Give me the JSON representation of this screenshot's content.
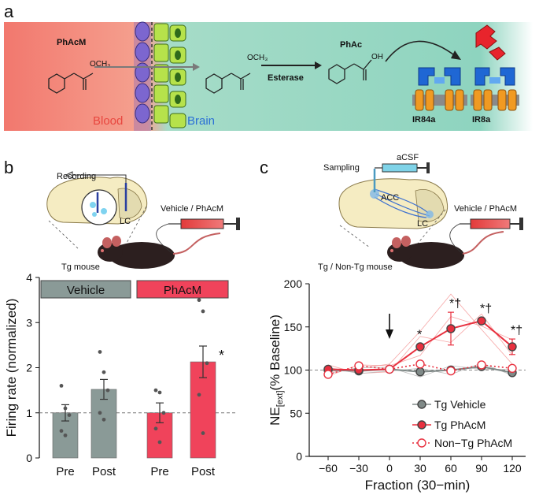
{
  "panel_a": {
    "label": "a",
    "molecule1": "PhAcM",
    "methyl1": "OCH₃",
    "methyl2": "OCH₃",
    "enzyme": "Esterase",
    "molecule2": "PhAc",
    "oh": "OH",
    "blood": "Blood",
    "brain": "Brain",
    "receptor1": "IR84a",
    "receptor2": "IR8a",
    "colors": {
      "blood": "#e8473f",
      "brain": "#2a6fd6",
      "receptor_blue": "#1f67d4",
      "receptor_orange": "#f09a22",
      "ligand_red": "#e8242c"
    }
  },
  "panel_b": {
    "label": "b",
    "recording": "Recording",
    "lc": "LC",
    "vehicle_phacm": "Vehicle / PhAcM",
    "mouse": "Tg mouse",
    "chart_data": {
      "type": "bar",
      "ylabel": "Firing rate (normalized)",
      "ylim": [
        0,
        4
      ],
      "yticks": [
        "0",
        "1",
        "2",
        "3",
        "4"
      ],
      "groups": [
        {
          "name": "Vehicle",
          "color": "#8a9a97",
          "bars": [
            {
              "label": "Pre",
              "value": 1.0,
              "err": 0.18,
              "points": [
                1.6,
                1.1,
                0.95,
                0.6,
                0.5
              ]
            },
            {
              "label": "Post",
              "value": 1.52,
              "err": 0.22,
              "points": [
                2.35,
                1.9,
                1.5,
                1.0,
                0.85
              ]
            }
          ]
        },
        {
          "name": "PhAcM",
          "color": "#f0435b",
          "bars": [
            {
              "label": "Pre",
              "value": 1.0,
              "err": 0.22,
              "points": [
                1.5,
                1.45,
                1.0,
                0.65,
                0.35
              ]
            },
            {
              "label": "Post",
              "value": 2.13,
              "err": 0.35,
              "points": [
                3.5,
                3.25,
                2.1,
                1.4,
                0.55
              ]
            }
          ]
        }
      ],
      "significance": "*",
      "baseline": 1
    }
  },
  "panel_c": {
    "label": "c",
    "sampling": "Sampling",
    "acsf": "aCSF",
    "acc": "ACC",
    "lc": "LC",
    "vehicle_phacm": "Vehicle / PhAcM",
    "mouse": "Tg / Non-Tg mouse",
    "chart_data": {
      "type": "line",
      "ylabel_main": "NE",
      "ylabel_sub": "[ext]",
      "ylabel_rest": "(% Baseline)",
      "xlabel": "Fraction (30−min)",
      "x": [
        -60,
        -30,
        0,
        30,
        60,
        90,
        120
      ],
      "xticks": [
        "−60",
        "−30",
        "0",
        "30",
        "60",
        "90",
        "120"
      ],
      "ylim": [
        0,
        200
      ],
      "yticks": [
        "0",
        "50",
        "100",
        "150",
        "200"
      ],
      "baseline": 100,
      "arrow_at": 0,
      "series": [
        {
          "name": "Tg Vehicle",
          "color": "#808a88",
          "style": "solid-filled",
          "values": [
            100,
            99,
            101,
            98,
            100,
            104,
            97
          ],
          "err": [
            3,
            3,
            3,
            4,
            5,
            4,
            4
          ]
        },
        {
          "name": "Tg PhAcM",
          "color": "#e8303f",
          "style": "solid-filled",
          "values": [
            101,
            100,
            101,
            127,
            148,
            157,
            127
          ],
          "err": [
            3,
            3,
            3,
            4,
            19,
            3,
            9
          ]
        },
        {
          "name": "Non−Tg PhAcM",
          "color": "#e8303f",
          "style": "dotted-open",
          "values": [
            95,
            105,
            101,
            107,
            99,
            106,
            102
          ],
          "err": [
            3,
            3,
            3,
            4,
            5,
            4,
            3
          ]
        }
      ],
      "annotations": [
        {
          "x": 30,
          "text": "*"
        },
        {
          "x": 60,
          "text": "*†"
        },
        {
          "x": 90,
          "text": "*†"
        },
        {
          "x": 120,
          "text": "*†"
        }
      ]
    }
  }
}
